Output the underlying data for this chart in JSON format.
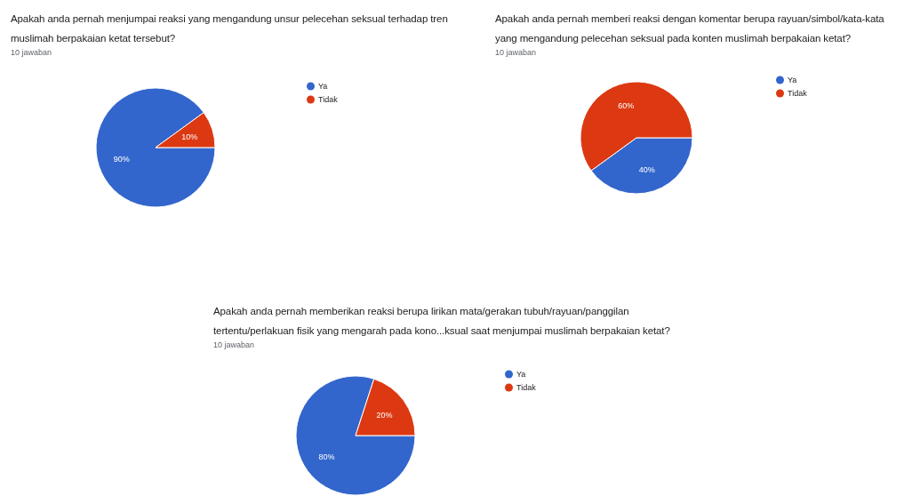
{
  "chart_data": [
    {
      "type": "pie",
      "title": "Apakah anda pernah menjumpai reaksi yang mengandung unsur pelecehan seksual terhadap tren muslimah berpakaian ketat tersebut?",
      "subtitle": "10 jawaban",
      "categories": [
        "Ya",
        "Tidak"
      ],
      "values": [
        90,
        10
      ],
      "value_labels": [
        "90%",
        "10%"
      ],
      "colors": [
        "#3366cc",
        "#dc3912"
      ],
      "legend": "right"
    },
    {
      "type": "pie",
      "title": "Apakah anda pernah memberi reaksi dengan komentar berupa rayuan/simbol/kata-kata yang mengandung pelecehan seksual pada konten muslimah berpakaian ketat?",
      "subtitle": "10 jawaban",
      "categories": [
        "Ya",
        "Tidak"
      ],
      "values": [
        40,
        60
      ],
      "value_labels": [
        "40%",
        "60%"
      ],
      "colors": [
        "#3366cc",
        "#dc3912"
      ],
      "legend": "right"
    },
    {
      "type": "pie",
      "title": "Apakah anda pernah memberikan reaksi berupa lirikan mata/gerakan tubuh/rayuan/panggilan tertentu/perlakuan fisik yang mengarah pada kono...ksual saat menjumpai muslimah berpakaian ketat?",
      "subtitle": "10 jawaban",
      "categories": [
        "Ya",
        "Tidak"
      ],
      "values": [
        80,
        20
      ],
      "value_labels": [
        "80%",
        "20%"
      ],
      "colors": [
        "#3366cc",
        "#dc3912"
      ],
      "legend": "right"
    }
  ]
}
